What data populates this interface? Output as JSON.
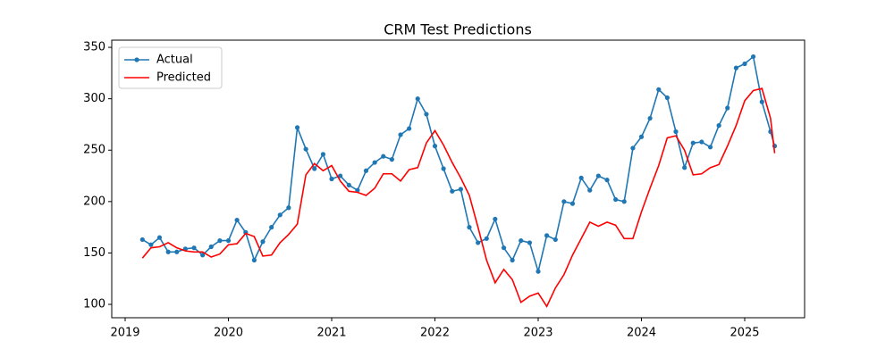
{
  "chart_data": {
    "type": "line",
    "title": "CRM Test Predictions",
    "x": [
      2019.167,
      2019.25,
      2019.333,
      2019.417,
      2019.5,
      2019.583,
      2019.667,
      2019.75,
      2019.833,
      2019.917,
      2020,
      2020.083,
      2020.167,
      2020.25,
      2020.333,
      2020.417,
      2020.5,
      2020.583,
      2020.667,
      2020.75,
      2020.833,
      2020.917,
      2021,
      2021.083,
      2021.167,
      2021.25,
      2021.333,
      2021.417,
      2021.5,
      2021.583,
      2021.667,
      2021.75,
      2021.833,
      2021.917,
      2022,
      2022.083,
      2022.167,
      2022.25,
      2022.333,
      2022.417,
      2022.5,
      2022.583,
      2022.667,
      2022.75,
      2022.833,
      2022.917,
      2023,
      2023.083,
      2023.167,
      2023.25,
      2023.333,
      2023.417,
      2023.5,
      2023.583,
      2023.667,
      2023.75,
      2023.833,
      2023.917,
      2024,
      2024.083,
      2024.167,
      2024.25,
      2024.333,
      2024.417,
      2024.5,
      2024.583,
      2024.667,
      2024.75,
      2024.833,
      2024.917,
      2025,
      2025.083,
      2025.167,
      2025.25,
      2025.29
    ],
    "series": [
      {
        "name": "Actual",
        "color": "#1f77b4",
        "marker": true,
        "values": [
          163,
          158,
          165,
          151,
          151,
          154,
          155,
          148,
          156,
          162,
          162,
          182,
          170,
          143,
          161,
          175,
          187,
          194,
          272,
          251,
          232,
          246,
          222,
          225,
          216,
          211,
          230,
          238,
          244,
          241,
          265,
          271,
          300,
          285,
          254,
          232,
          210,
          212,
          175,
          160,
          164,
          183,
          155,
          143,
          162,
          160,
          132,
          167,
          163,
          200,
          198,
          223,
          211,
          225,
          221,
          202,
          200,
          252,
          263,
          281,
          309,
          301,
          268,
          233,
          257,
          258,
          253,
          274,
          291,
          330,
          334,
          341,
          297,
          268,
          254
        ]
      },
      {
        "name": "Predicted",
        "color": "#ff0000",
        "marker": false,
        "values": [
          145,
          155,
          156,
          160,
          155,
          152,
          151,
          151,
          146,
          149,
          158,
          159,
          169,
          166,
          147,
          148,
          160,
          168,
          178,
          226,
          237,
          230,
          235,
          220,
          210,
          209,
          206,
          213,
          227,
          227,
          220,
          231,
          233,
          257,
          269,
          255,
          238,
          223,
          206,
          175,
          143,
          121,
          134,
          124,
          102,
          108,
          111,
          98,
          116,
          129,
          148,
          164,
          180,
          176,
          180,
          177,
          164,
          164,
          190,
          213,
          235,
          262,
          264,
          250,
          226,
          227,
          233,
          236,
          254,
          274,
          298,
          308,
          310,
          281,
          247
        ]
      }
    ],
    "xlim": [
      2018.87,
      2025.58
    ],
    "xticks": [
      2019,
      2020,
      2021,
      2022,
      2023,
      2024,
      2025
    ],
    "ylim": [
      87,
      357
    ],
    "yticks": [
      100,
      150,
      200,
      250,
      300,
      350
    ],
    "legend": "upper left"
  }
}
